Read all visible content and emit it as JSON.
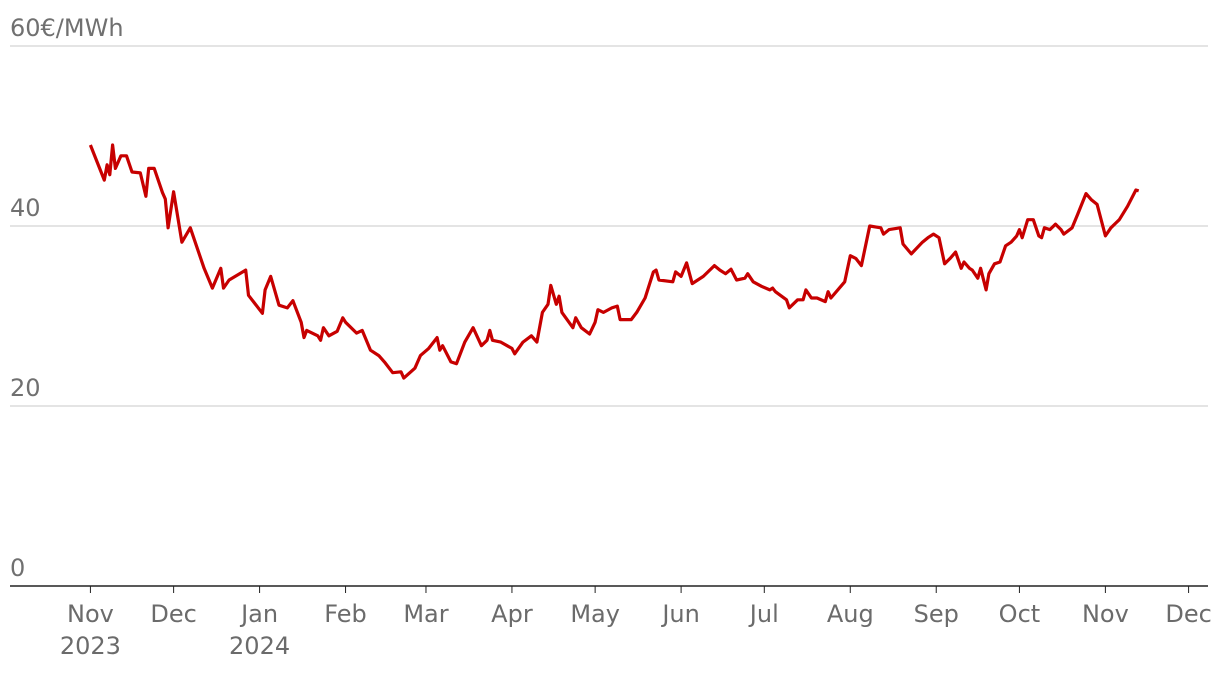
{
  "chart_data": {
    "type": "line",
    "x": [
      0,
      5,
      6,
      7,
      8,
      9,
      11,
      13,
      15,
      18,
      20,
      21,
      23,
      26,
      27,
      28,
      30,
      33,
      36,
      41,
      44,
      47,
      48,
      50,
      56,
      57,
      62,
      63,
      65,
      68,
      71,
      73,
      76,
      77,
      78,
      82,
      83,
      84,
      86,
      89,
      91,
      92,
      96,
      98,
      101,
      104,
      106,
      109,
      112,
      113,
      117,
      119,
      122,
      125,
      126,
      127,
      130,
      132,
      135,
      138,
      141,
      143,
      144,
      145,
      148,
      152,
      153,
      156,
      159,
      161,
      163,
      165,
      166,
      168,
      169,
      170,
      174,
      175,
      177,
      180,
      182,
      183,
      185,
      188,
      190,
      191,
      195,
      197,
      200,
      203,
      204,
      205,
      210,
      211,
      213,
      215,
      217,
      221,
      225,
      227,
      229,
      231,
      233,
      236,
      237,
      239,
      242,
      245,
      246,
      247,
      251,
      252,
      255,
      257,
      258,
      260,
      262,
      265,
      266,
      267,
      272,
      274,
      276,
      278,
      281,
      285,
      286,
      288,
      292,
      293,
      296,
      300,
      302,
      304,
      306,
      308,
      310,
      312,
      314,
      315,
      317,
      318,
      320,
      321,
      323,
      324,
      326,
      328,
      330,
      332,
      334,
      335,
      336,
      338,
      340,
      342,
      343,
      344,
      346,
      348,
      350,
      351,
      354,
      356,
      359,
      361,
      363,
      366,
      368,
      370,
      371,
      374,
      377,
      378
    ],
    "values": [
      49.0,
      45.1,
      46.8,
      45.7,
      49.0,
      46.4,
      47.8,
      47.8,
      46.0,
      45.9,
      43.3,
      46.4,
      46.4,
      43.7,
      43.0,
      39.8,
      43.8,
      38.2,
      39.8,
      35.3,
      33.1,
      35.3,
      33.1,
      34.0,
      35.1,
      32.3,
      30.3,
      32.9,
      34.4,
      31.2,
      30.9,
      31.7,
      29.3,
      27.6,
      28.4,
      27.8,
      27.3,
      28.7,
      27.8,
      28.3,
      29.8,
      29.3,
      28.1,
      28.4,
      26.2,
      25.6,
      24.9,
      23.7,
      23.8,
      23.1,
      24.2,
      25.6,
      26.4,
      27.6,
      26.2,
      26.7,
      24.9,
      24.7,
      27.1,
      28.7,
      26.7,
      27.3,
      28.4,
      27.3,
      27.1,
      26.4,
      25.8,
      27.1,
      27.8,
      27.1,
      30.4,
      31.3,
      33.4,
      31.3,
      32.2,
      30.4,
      28.7,
      29.8,
      28.7,
      28.0,
      29.3,
      30.7,
      30.4,
      30.9,
      31.1,
      29.6,
      29.6,
      30.4,
      32.0,
      34.9,
      35.1,
      34.0,
      33.8,
      34.9,
      34.4,
      35.9,
      33.6,
      34.4,
      35.6,
      35.1,
      34.7,
      35.2,
      34.0,
      34.2,
      34.7,
      33.8,
      33.3,
      32.9,
      33.1,
      32.7,
      31.8,
      30.9,
      31.8,
      31.8,
      32.9,
      32.0,
      32.0,
      31.6,
      32.7,
      32.0,
      33.8,
      36.7,
      36.4,
      35.6,
      40.0,
      39.8,
      39.1,
      39.6,
      39.8,
      38.0,
      36.9,
      38.2,
      38.7,
      39.1,
      38.7,
      35.8,
      36.4,
      37.1,
      35.3,
      36.0,
      35.3,
      35.1,
      34.2,
      35.3,
      32.9,
      34.7,
      35.8,
      36.0,
      37.8,
      38.2,
      38.9,
      39.6,
      38.7,
      40.7,
      40.7,
      38.9,
      38.7,
      39.8,
      39.6,
      40.2,
      39.6,
      39.1,
      39.8,
      41.3,
      43.6,
      42.9,
      42.4,
      38.9,
      39.8,
      40.4,
      40.7,
      42.2,
      44.0,
      43.9
    ],
    "color": "#c70000",
    "xlim": [
      -29,
      403
    ],
    "xticks": [
      {
        "value": 0,
        "label": "Nov"
      },
      {
        "value": 30,
        "label": "Dec"
      },
      {
        "value": 61,
        "label": "Jan"
      },
      {
        "value": 92,
        "label": "Feb"
      },
      {
        "value": 121,
        "label": "Mar"
      },
      {
        "value": 152,
        "label": "Apr"
      },
      {
        "value": 182,
        "label": "May"
      },
      {
        "value": 213,
        "label": "Jun"
      },
      {
        "value": 243,
        "label": "Jul"
      },
      {
        "value": 274,
        "label": "Aug"
      },
      {
        "value": 305,
        "label": "Sep"
      },
      {
        "value": 335,
        "label": "Oct"
      },
      {
        "value": 366,
        "label": "Nov"
      },
      {
        "value": 396,
        "label": "Dec"
      }
    ],
    "x_year_labels": [
      {
        "value": 0,
        "label": "2023"
      },
      {
        "value": 61,
        "label": "2024"
      }
    ],
    "ylim": [
      0,
      60
    ],
    "yticks": [
      0,
      20,
      40,
      {
        "value": 60,
        "label": "60€/MWh"
      }
    ],
    "grid": true
  }
}
